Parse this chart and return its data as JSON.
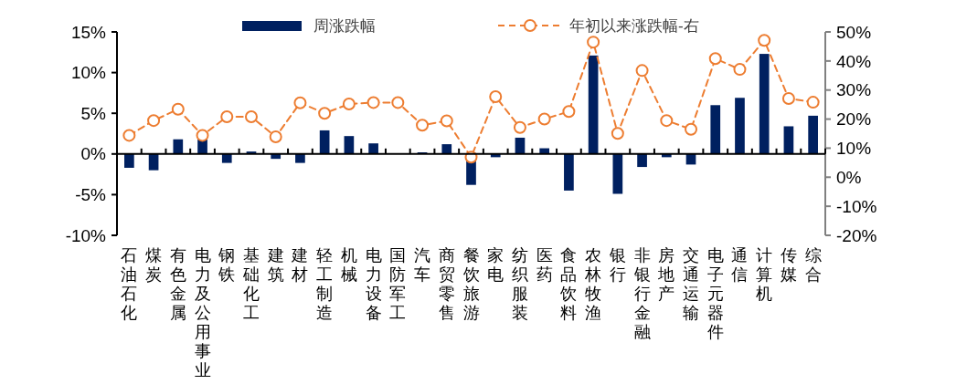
{
  "chart_data": {
    "type": "bar",
    "categories": [
      "石油石化",
      "煤炭",
      "有色金属",
      "电力及公用事业",
      "钢铁",
      "基础化工",
      "建筑",
      "建材",
      "轻工制造",
      "机械",
      "电力设备",
      "国防军工",
      "汽车",
      "商贸零售",
      "餐饮旅游",
      "家电",
      "纺织服装",
      "医药",
      "食品饮料",
      "农林牧渔",
      "银行",
      "非银行金融",
      "房地产",
      "交通运输",
      "电子元器件",
      "通信",
      "计算机",
      "传媒",
      "综合"
    ],
    "series": [
      {
        "name": "周涨跌幅",
        "color": "#002060",
        "values": [
          -1.7,
          -2.0,
          1.8,
          1.8,
          -1.1,
          0.3,
          -0.6,
          -1.1,
          2.9,
          2.2,
          1.3,
          0,
          0.2,
          1.2,
          -3.8,
          -0.4,
          2.0,
          0.7,
          -4.5,
          12.1,
          -4.9,
          -1.6,
          -0.4,
          -1.3,
          6.0,
          6.9,
          12.3,
          3.4,
          4.7
        ]
      },
      {
        "name": "年初以来涨跌幅-右",
        "type": "line",
        "axis": "y2",
        "color": "#ed7d31",
        "marker": "circle",
        "line_style": "dashed",
        "values": [
          14.4,
          19.5,
          23.4,
          14.4,
          20.8,
          20.8,
          13.9,
          25.6,
          22.0,
          25.2,
          25.7,
          25.7,
          17.9,
          19.4,
          6.9,
          27.7,
          17.1,
          20.0,
          22.6,
          46.5,
          15.1,
          36.7,
          19.5,
          16.5,
          40.8,
          37.1,
          47.1,
          27.1,
          25.8
        ]
      }
    ],
    "ylim": [
      -10,
      15
    ],
    "yticks": [
      {
        "value": -10,
        "label": "-10%"
      },
      {
        "value": -5,
        "label": "-5%"
      },
      {
        "value": 0,
        "label": "0%"
      },
      {
        "value": 5,
        "label": "5%"
      },
      {
        "value": 10,
        "label": "10%"
      },
      {
        "value": 15,
        "label": "15%"
      }
    ],
    "y2lim": [
      -20,
      50
    ],
    "y2ticks": [
      {
        "value": -20,
        "label": "-20%"
      },
      {
        "value": -10,
        "label": "-10%"
      },
      {
        "value": 0,
        "label": "0%"
      },
      {
        "value": 10,
        "label": "10%"
      },
      {
        "value": 20,
        "label": "20%"
      },
      {
        "value": 30,
        "label": "30%"
      },
      {
        "value": 40,
        "label": "40%"
      },
      {
        "value": 50,
        "label": "50%"
      }
    ],
    "legend": "top"
  }
}
